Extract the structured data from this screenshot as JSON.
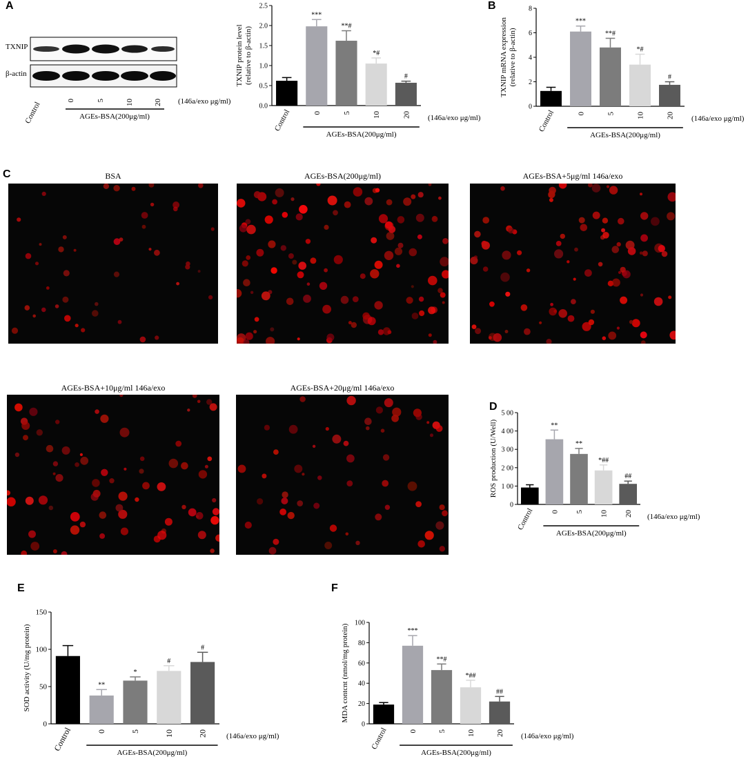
{
  "panels": {
    "a": "A",
    "b": "B",
    "c": "C",
    "d": "D",
    "e": "E",
    "f": "F"
  },
  "blot": {
    "row_labels": [
      "TXNIP",
      "β-actin"
    ],
    "x_labels": [
      "Control",
      "0",
      "5",
      "10",
      "20"
    ],
    "dose_label": "(146a/exo μg/ml)",
    "group_label": "AGEs-BSA(200μg/ml)"
  },
  "micrographs": [
    {
      "title": "BSA"
    },
    {
      "title": "AGEs-BSA(200μg/ml)"
    },
    {
      "title": "AGEs-BSA+5μg/ml 146a/exo"
    },
    {
      "title": "AGEs-BSA+10μg/ml 146a/exo"
    },
    {
      "title": "AGEs-BSA+20μg/ml 146a/exo"
    }
  ],
  "chart_data": [
    {
      "id": "A",
      "type": "bar",
      "categories": [
        "Control",
        "0",
        "5",
        "10",
        "20"
      ],
      "values": [
        0.62,
        1.98,
        1.62,
        1.05,
        0.57
      ],
      "errors": [
        0.08,
        0.17,
        0.25,
        0.14,
        0.04
      ],
      "significance": [
        "",
        "***",
        "**#",
        "*#",
        "#"
      ],
      "ylabel": "TXNIP protein level\n(relative to β-actin)",
      "ylim": [
        0,
        2.5
      ],
      "yticks": [
        "0.0",
        "0.5",
        "1.0",
        "1.5",
        "2.0",
        "2.5"
      ],
      "dose_label": "(146a/exo μg/ml)",
      "group_label": "AGEs-BSA(200μg/ml)",
      "colors": [
        "#000000",
        "#a6a6ad",
        "#7c7c7c",
        "#d8d8d8",
        "#5a5a5a"
      ]
    },
    {
      "id": "B",
      "type": "bar",
      "categories": [
        "Control",
        "0",
        "5",
        "10",
        "20"
      ],
      "values": [
        1.25,
        6.1,
        4.8,
        3.4,
        1.75
      ],
      "errors": [
        0.3,
        0.45,
        0.75,
        0.85,
        0.25
      ],
      "significance": [
        "",
        "***",
        "**#",
        "*#",
        "#"
      ],
      "ylabel": "TXNIP mRNA expression\n(relative to β-actin)",
      "ylim": [
        0,
        8
      ],
      "yticks": [
        "0",
        "2",
        "4",
        "6",
        "8"
      ],
      "dose_label": "(146a/exo μg/ml)",
      "group_label": "AGEs-BSA(200μg/ml)",
      "colors": [
        "#000000",
        "#a6a6ad",
        "#7c7c7c",
        "#d8d8d8",
        "#5a5a5a"
      ]
    },
    {
      "id": "D",
      "type": "bar",
      "categories": [
        "Control",
        "0",
        "5",
        "10",
        "20"
      ],
      "values": [
        92,
        355,
        275,
        185,
        112
      ],
      "errors": [
        15,
        50,
        30,
        30,
        15
      ],
      "significance": [
        "",
        "**",
        "**",
        "*##",
        "##"
      ],
      "ylabel": "ROS production (U/Well)",
      "ylim": [
        0,
        500
      ],
      "yticks": [
        "0",
        "1 00",
        "2 00",
        "3 00",
        "4 00",
        "5 00"
      ],
      "dose_label": "(146a/exo μg/ml)",
      "group_label": "AGEs-BSA(200μg/ml)",
      "colors": [
        "#000000",
        "#a6a6ad",
        "#7c7c7c",
        "#d8d8d8",
        "#5a5a5a"
      ]
    },
    {
      "id": "E",
      "type": "bar",
      "categories": [
        "Control",
        "0",
        "5",
        "10",
        "20"
      ],
      "values": [
        91,
        38,
        58,
        71,
        83
      ],
      "errors": [
        14,
        8,
        5,
        7,
        13
      ],
      "significance": [
        "",
        "**",
        "*",
        "#",
        "#"
      ],
      "ylabel": "SOD activity (U/mg protein)",
      "ylim": [
        0,
        150
      ],
      "yticks": [
        "0",
        "50",
        "100",
        "150"
      ],
      "dose_label": "(146a/exo μg/ml)",
      "group_label": "AGEs-BSA(200μg/ml)",
      "colors": [
        "#000000",
        "#a6a6ad",
        "#7c7c7c",
        "#d8d8d8",
        "#5a5a5a"
      ]
    },
    {
      "id": "F",
      "type": "bar",
      "categories": [
        "Control",
        "0",
        "5",
        "10",
        "20"
      ],
      "values": [
        19,
        77,
        53,
        36,
        22
      ],
      "errors": [
        2,
        10,
        6,
        7,
        5
      ],
      "significance": [
        "",
        "***",
        "**#",
        "*##",
        "##"
      ],
      "ylabel": "MDA contcnt (nmol/mg protein)",
      "ylim": [
        0,
        100
      ],
      "yticks": [
        "0",
        "20",
        "40",
        "60",
        "80",
        "100"
      ],
      "dose_label": "(146a/exo μg/ml)",
      "group_label": "AGEs-BSA(200μg/ml)",
      "colors": [
        "#000000",
        "#a6a6ad",
        "#7c7c7c",
        "#d8d8d8",
        "#5a5a5a"
      ]
    }
  ]
}
